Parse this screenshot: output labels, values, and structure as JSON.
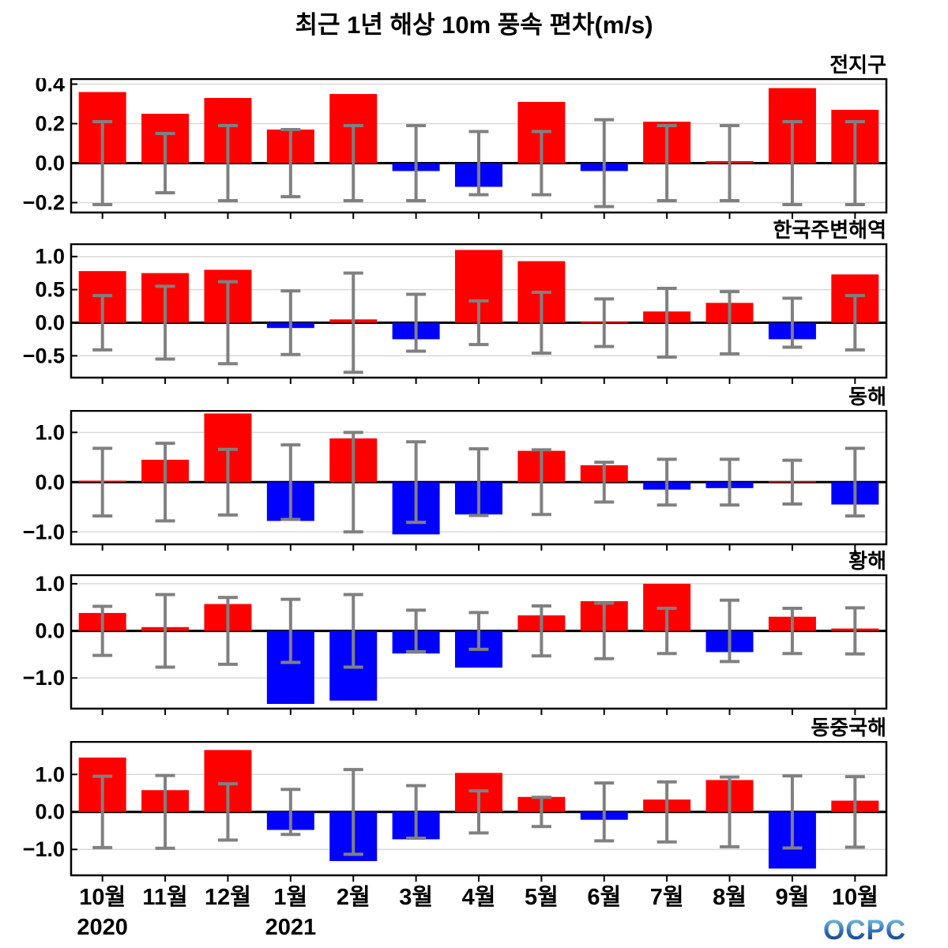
{
  "title": "최근 1년 해상 10m 풍속 편차(m/s)",
  "logo": "OCPC",
  "colors": {
    "positive_bar": "#FF0000",
    "negative_bar": "#0000FF",
    "error_bar": "#808080",
    "grid": "#D9D9D9",
    "axis": "#000000",
    "logo_top": "#8FD4EE",
    "logo_mid": "#2E6DB4",
    "logo_bottom": "#0B2D6E"
  },
  "months": [
    "10월",
    "11월",
    "12월",
    "1월",
    "2월",
    "3월",
    "4월",
    "5월",
    "6월",
    "7월",
    "8월",
    "9월",
    "10월"
  ],
  "years": [
    {
      "label": "2020",
      "month_index": 0
    },
    {
      "label": "2021",
      "month_index": 3
    }
  ],
  "chart_data": [
    {
      "type": "bar",
      "region": "전지구",
      "unit": "m/s",
      "categories": [
        "10월",
        "11월",
        "12월",
        "1월",
        "2월",
        "3월",
        "4월",
        "5월",
        "6월",
        "7월",
        "8월",
        "9월",
        "10월"
      ],
      "values": [
        0.36,
        0.25,
        0.33,
        0.17,
        0.35,
        -0.04,
        -0.12,
        0.31,
        -0.04,
        0.21,
        0.01,
        0.38,
        0.27
      ],
      "error_range": [
        0.21,
        0.15,
        0.19,
        0.17,
        0.19,
        0.19,
        0.16,
        0.16,
        0.22,
        0.19,
        0.19,
        0.21,
        0.21
      ],
      "yticks": [
        0.4,
        0.2,
        0.0,
        -0.2
      ],
      "ytick_labels": [
        "0.4",
        "0.2",
        "0.0",
        "−0.2"
      ],
      "ylim": [
        -0.25,
        0.43
      ]
    },
    {
      "type": "bar",
      "region": "한국주변해역",
      "unit": "m/s",
      "categories": [
        "10월",
        "11월",
        "12월",
        "1월",
        "2월",
        "3월",
        "4월",
        "5월",
        "6월",
        "7월",
        "8월",
        "9월",
        "10월"
      ],
      "values": [
        0.78,
        0.75,
        0.8,
        -0.08,
        0.05,
        -0.25,
        1.1,
        0.93,
        0.01,
        0.17,
        0.3,
        -0.25,
        0.73
      ],
      "error_range": [
        0.41,
        0.55,
        0.62,
        0.48,
        0.75,
        0.43,
        0.33,
        0.46,
        0.36,
        0.52,
        0.47,
        0.37,
        0.41
      ],
      "yticks": [
        1.0,
        0.5,
        0.0,
        -0.5
      ],
      "ytick_labels": [
        "1.0",
        "0.5",
        "0.0",
        "−0.5"
      ],
      "ylim": [
        -0.83,
        1.2
      ]
    },
    {
      "type": "bar",
      "region": "동해",
      "unit": "m/s",
      "categories": [
        "10월",
        "11월",
        "12월",
        "1월",
        "2월",
        "3월",
        "4월",
        "5월",
        "6월",
        "7월",
        "8월",
        "9월",
        "10월"
      ],
      "values": [
        0.03,
        0.45,
        1.38,
        -0.78,
        0.88,
        -1.05,
        -0.65,
        0.63,
        0.34,
        -0.15,
        -0.12,
        0.02,
        -0.45
      ],
      "error_range": [
        0.68,
        0.78,
        0.66,
        0.75,
        1.0,
        0.81,
        0.67,
        0.65,
        0.4,
        0.46,
        0.46,
        0.44,
        0.68
      ],
      "yticks": [
        1.0,
        0.0,
        -1.0
      ],
      "ytick_labels": [
        "1.0",
        "0.0",
        "−1.0"
      ],
      "ylim": [
        -1.25,
        1.45
      ]
    },
    {
      "type": "bar",
      "region": "황해",
      "unit": "m/s",
      "categories": [
        "10월",
        "11월",
        "12월",
        "1월",
        "2월",
        "3월",
        "4월",
        "5월",
        "6월",
        "7월",
        "8월",
        "9월",
        "10월"
      ],
      "values": [
        0.38,
        0.08,
        0.57,
        -1.55,
        -1.48,
        -0.48,
        -0.78,
        0.33,
        0.63,
        1.0,
        -0.45,
        0.3,
        0.05
      ],
      "error_range": [
        0.52,
        0.77,
        0.71,
        0.67,
        0.77,
        0.44,
        0.39,
        0.53,
        0.59,
        0.48,
        0.65,
        0.48,
        0.49
      ],
      "yticks": [
        1.0,
        0.0,
        -1.0
      ],
      "ytick_labels": [
        "1.0",
        "0.0",
        "−1.0"
      ],
      "ylim": [
        -1.65,
        1.2
      ]
    },
    {
      "type": "bar",
      "region": "동중국해",
      "unit": "m/s",
      "categories": [
        "10월",
        "11월",
        "12월",
        "1월",
        "2월",
        "3월",
        "4월",
        "5월",
        "6월",
        "7월",
        "8월",
        "9월",
        "10월"
      ],
      "values": [
        1.45,
        0.58,
        1.65,
        -0.48,
        -1.31,
        -0.73,
        1.04,
        0.4,
        -0.21,
        0.33,
        0.85,
        -1.51,
        0.3
      ],
      "error_range": [
        0.95,
        0.97,
        0.75,
        0.6,
        1.13,
        0.7,
        0.56,
        0.39,
        0.77,
        0.8,
        0.93,
        0.96,
        0.94
      ],
      "yticks": [
        1.0,
        0.0,
        -1.0
      ],
      "ytick_labels": [
        "1.0",
        "0.0",
        "−1.0"
      ],
      "ylim": [
        -1.69,
        1.89
      ]
    }
  ]
}
